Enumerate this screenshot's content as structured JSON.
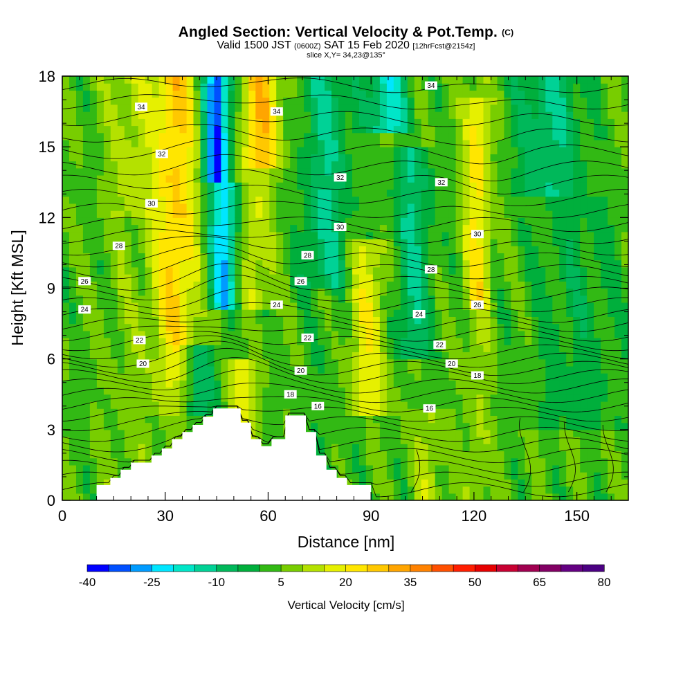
{
  "header": {
    "title": "Angled Section: Vertical Velocity & Pot.Temp.",
    "title_mark": "(C)",
    "valid_prefix": "Valid 1500 JST",
    "valid_utc": "(0600Z)",
    "valid_date": "SAT 15 Feb 2020",
    "forecast_note": "[12hrFcst@2154z]",
    "slice_note": "slice X,Y= 34,23@135°"
  },
  "chart_data": {
    "type": "heatmap",
    "title": "Angled Section: Vertical Velocity & Pot.Temp.",
    "xlabel": "Distance [nm]",
    "ylabel": "Height [Kft MSL]",
    "xlim": [
      0,
      165
    ],
    "ylim": [
      0,
      18
    ],
    "x_ticks": [
      0,
      30,
      60,
      90,
      120,
      150
    ],
    "y_ticks": [
      0,
      3,
      6,
      9,
      12,
      15,
      18
    ],
    "grid": false,
    "fill_field": "Vertical Velocity [cm/s]",
    "colorbar": {
      "title": "Vertical Velocity [cm/s]",
      "range": [
        -40,
        80
      ],
      "tick_values": [
        -40,
        -25,
        -10,
        5,
        20,
        35,
        50,
        65,
        80
      ],
      "colors": [
        "#0000ff",
        "#0050ff",
        "#009bff",
        "#00e6ff",
        "#00e6c8",
        "#00d296",
        "#00b85a",
        "#00af3c",
        "#32b914",
        "#78cd00",
        "#b4e100",
        "#e6f000",
        "#ffe600",
        "#ffc800",
        "#ffa500",
        "#ff8200",
        "#ff5000",
        "#ff1e00",
        "#e60000",
        "#c80032",
        "#a00050",
        "#820064",
        "#640082",
        "#4b0082"
      ]
    },
    "contour_field": "Potential Temperature (C)",
    "contour_levels": [
      16,
      18,
      20,
      22,
      24,
      26,
      28,
      30,
      32,
      34
    ],
    "contour_labels": [
      {
        "text": "34",
        "x": 23.0,
        "y": 16.7
      },
      {
        "text": "34",
        "x": 62.5,
        "y": 16.5
      },
      {
        "text": "34",
        "x": 107.5,
        "y": 17.6
      },
      {
        "text": "32",
        "x": 29.0,
        "y": 14.7
      },
      {
        "text": "32",
        "x": 81.0,
        "y": 13.7
      },
      {
        "text": "32",
        "x": 110.5,
        "y": 13.5
      },
      {
        "text": "30",
        "x": 26.0,
        "y": 12.6
      },
      {
        "text": "30",
        "x": 81.0,
        "y": 11.6
      },
      {
        "text": "30",
        "x": 121.0,
        "y": 11.3
      },
      {
        "text": "28",
        "x": 16.5,
        "y": 10.8
      },
      {
        "text": "28",
        "x": 71.5,
        "y": 10.4
      },
      {
        "text": "28",
        "x": 107.5,
        "y": 9.8
      },
      {
        "text": "26",
        "x": 6.5,
        "y": 9.3
      },
      {
        "text": "26",
        "x": 69.5,
        "y": 9.3
      },
      {
        "text": "26",
        "x": 121.0,
        "y": 8.3
      },
      {
        "text": "24",
        "x": 6.5,
        "y": 8.1
      },
      {
        "text": "24",
        "x": 62.5,
        "y": 8.3
      },
      {
        "text": "24",
        "x": 104.0,
        "y": 7.9
      },
      {
        "text": "22",
        "x": 22.5,
        "y": 6.8
      },
      {
        "text": "22",
        "x": 71.5,
        "y": 6.9
      },
      {
        "text": "22",
        "x": 110.0,
        "y": 6.6
      },
      {
        "text": "20",
        "x": 23.5,
        "y": 5.8
      },
      {
        "text": "20",
        "x": 69.5,
        "y": 5.5
      },
      {
        "text": "20",
        "x": 113.5,
        "y": 5.8
      },
      {
        "text": "18",
        "x": 66.5,
        "y": 4.5
      },
      {
        "text": "18",
        "x": 121.0,
        "y": 5.3
      },
      {
        "text": "16",
        "x": 74.5,
        "y": 4.0
      },
      {
        "text": "16",
        "x": 107.0,
        "y": 3.9
      }
    ],
    "terrain_outline": [
      [
        0,
        0
      ],
      [
        10,
        0
      ],
      [
        10,
        0.65
      ],
      [
        14,
        0.65
      ],
      [
        14,
        0.95
      ],
      [
        17,
        0.95
      ],
      [
        17,
        1.3
      ],
      [
        20,
        1.3
      ],
      [
        20,
        1.6
      ],
      [
        26,
        1.6
      ],
      [
        26,
        1.9
      ],
      [
        29,
        1.9
      ],
      [
        29,
        2.2
      ],
      [
        32,
        2.2
      ],
      [
        32,
        2.6
      ],
      [
        35,
        2.6
      ],
      [
        35,
        2.9
      ],
      [
        38,
        2.9
      ],
      [
        38,
        3.2
      ],
      [
        41,
        3.2
      ],
      [
        41,
        3.55
      ],
      [
        44,
        3.55
      ],
      [
        44,
        3.9
      ],
      [
        52,
        3.9
      ],
      [
        52,
        3.3
      ],
      [
        55,
        3.3
      ],
      [
        55,
        2.6
      ],
      [
        58,
        2.6
      ],
      [
        58,
        2.3
      ],
      [
        61,
        2.3
      ],
      [
        61,
        2.6
      ],
      [
        65,
        2.6
      ],
      [
        65,
        3.6
      ],
      [
        71,
        3.6
      ],
      [
        71,
        2.9
      ],
      [
        74,
        2.9
      ],
      [
        74,
        1.9
      ],
      [
        77,
        1.9
      ],
      [
        77,
        1.3
      ],
      [
        80,
        1.3
      ],
      [
        80,
        0.95
      ],
      [
        83,
        0.95
      ],
      [
        83,
        0.65
      ],
      [
        90,
        0.65
      ],
      [
        90,
        0
      ],
      [
        0,
        0
      ]
    ]
  }
}
